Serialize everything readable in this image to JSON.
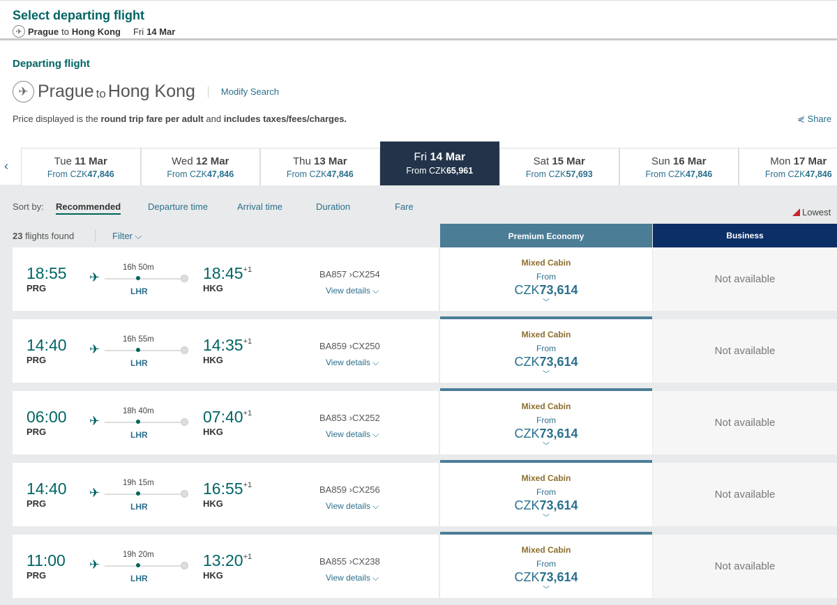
{
  "header": {
    "title": "Select departing flight",
    "origin": "Prague",
    "to": "to",
    "destination": "Hong Kong",
    "day": "Fri",
    "date": "14 Mar"
  },
  "section": {
    "title": "Departing flight",
    "origin": "Prague",
    "to": "to",
    "destination": "Hong Kong",
    "modify": "Modify Search",
    "note_parts": [
      "Price displayed is the ",
      "round trip fare per adult",
      " and ",
      "includes taxes/fees/charges."
    ],
    "share": "Share"
  },
  "dates": [
    {
      "day": "Tue",
      "date": "11 Mar",
      "from": "From CZK",
      "price": "47,846"
    },
    {
      "day": "Wed",
      "date": "12 Mar",
      "from": "From CZK",
      "price": "47,846"
    },
    {
      "day": "Thu",
      "date": "13 Mar",
      "from": "From CZK",
      "price": "47,846"
    },
    {
      "day": "Fri",
      "date": "14 Mar",
      "from": "From CZK",
      "price": "65,961",
      "selected": true
    },
    {
      "day": "Sat",
      "date": "15 Mar",
      "from": "From CZK",
      "price": "57,693"
    },
    {
      "day": "Sun",
      "date": "16 Mar",
      "from": "From CZK",
      "price": "47,846"
    },
    {
      "day": "Mon",
      "date": "17 Mar",
      "from": "From CZK",
      "price": "47,846"
    }
  ],
  "sort": {
    "label": "Sort by:",
    "options": [
      "Recommended",
      "Departure time",
      "Arrival time",
      "Duration",
      "Fare"
    ],
    "active": "Recommended"
  },
  "legend": {
    "lowest": "Lowest"
  },
  "results": {
    "count": "23",
    "found": " flights found",
    "filter": "Filter"
  },
  "cabins": {
    "premium": "Premium Economy",
    "business": "Business"
  },
  "flights": [
    {
      "dep": "18:55",
      "from": "PRG",
      "dur": "16h 50m",
      "via": "LHR",
      "arr": "18:45",
      "plus": "+1",
      "to": "HKG",
      "f1": "BA857",
      "f2": "CX254"
    },
    {
      "dep": "14:40",
      "from": "PRG",
      "dur": "16h 55m",
      "via": "LHR",
      "arr": "14:35",
      "plus": "+1",
      "to": "HKG",
      "f1": "BA859",
      "f2": "CX250"
    },
    {
      "dep": "06:00",
      "from": "PRG",
      "dur": "18h 40m",
      "via": "LHR",
      "arr": "07:40",
      "plus": "+1",
      "to": "HKG",
      "f1": "BA853",
      "f2": "CX252"
    },
    {
      "dep": "14:40",
      "from": "PRG",
      "dur": "19h 15m",
      "via": "LHR",
      "arr": "16:55",
      "plus": "+1",
      "to": "HKG",
      "f1": "BA859",
      "f2": "CX256"
    },
    {
      "dep": "11:00",
      "from": "PRG",
      "dur": "19h 20m",
      "via": "LHR",
      "arr": "13:20",
      "plus": "+1",
      "to": "HKG",
      "f1": "BA855",
      "f2": "CX238"
    }
  ],
  "fare": {
    "mixed": "Mixed Cabin",
    "from": "From",
    "cur": "CZK",
    "price": "73,614",
    "view": "View details",
    "na": "Not available"
  },
  "colors": {
    "brand": "#006564",
    "premium": "#4b7d96",
    "business": "#0b2f66",
    "selected_date": "#23344a",
    "lowest": "#c8252c"
  }
}
